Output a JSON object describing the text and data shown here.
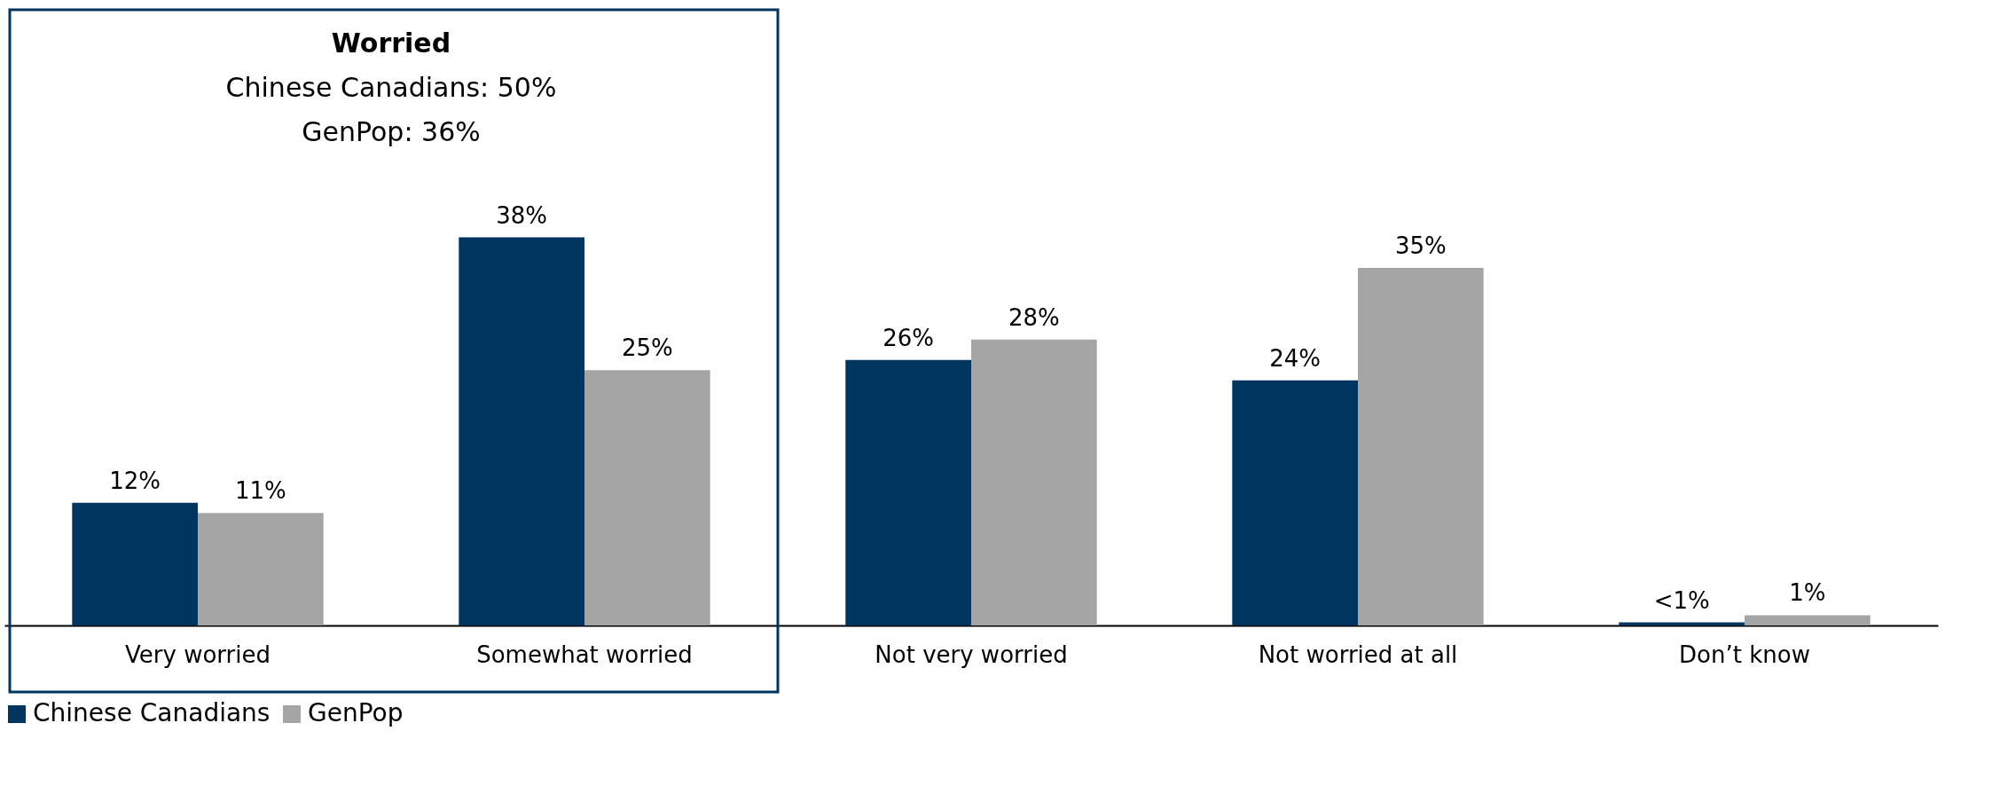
{
  "chart_data": {
    "type": "bar",
    "categories": [
      "Very worried",
      "Somewhat worried",
      "Not very worried",
      "Not worried at all",
      "Don’t know"
    ],
    "series": [
      {
        "name": "Chinese Canadians",
        "color": "#003560",
        "values": [
          12,
          38,
          26,
          24,
          0.3
        ],
        "value_labels": [
          "12%",
          "38%",
          "26%",
          "24%",
          "<1%"
        ]
      },
      {
        "name": "GenPop",
        "color": "#a5a5a5",
        "values": [
          11,
          25,
          28,
          35,
          1
        ],
        "value_labels": [
          "11%",
          "25%",
          "28%",
          "35%",
          "1%"
        ]
      }
    ],
    "annotations": [
      "Worried",
      "Chinese Canadians: 50%",
      "GenPop: 36%"
    ],
    "legend": "bottom",
    "grid": false
  }
}
